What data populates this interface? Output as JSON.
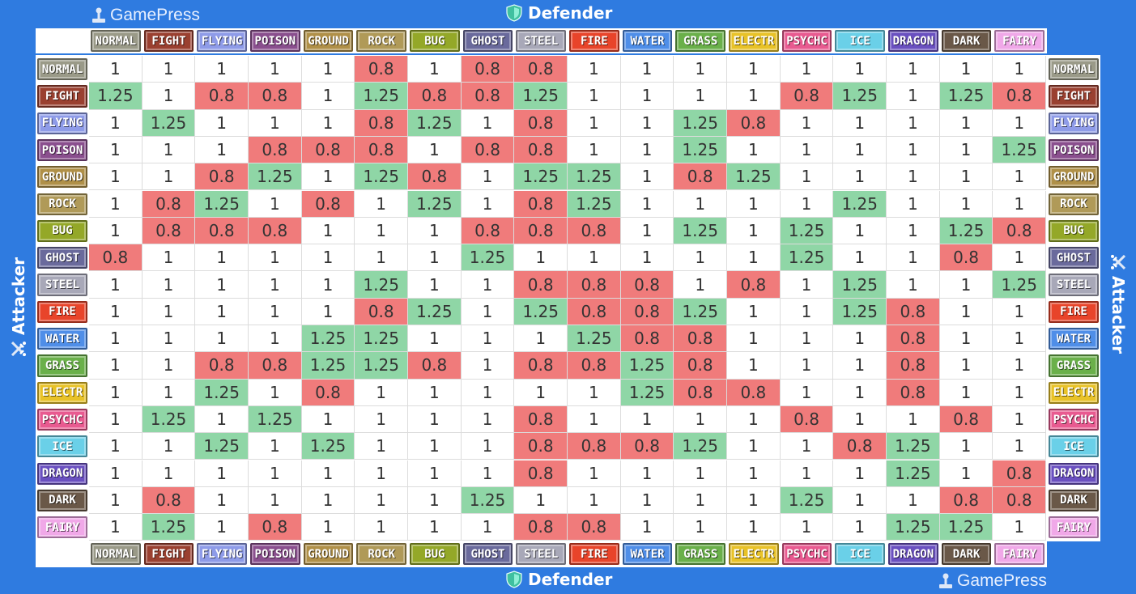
{
  "branding": {
    "name": "GamePress"
  },
  "axes": {
    "defender": "Defender",
    "attacker": "Attacker"
  },
  "types": [
    {
      "label": "NORMAL",
      "color": "#9a9a88"
    },
    {
      "label": "FIGHT",
      "color": "#9a4030"
    },
    {
      "label": "FLYING",
      "color": "#8e9be8"
    },
    {
      "label": "POISON",
      "color": "#8a4f8e"
    },
    {
      "label": "GROUND",
      "color": "#b09048"
    },
    {
      "label": "ROCK",
      "color": "#b09a58"
    },
    {
      "label": "BUG",
      "color": "#94a828"
    },
    {
      "label": "GHOST",
      "color": "#6a6a9c"
    },
    {
      "label": "STEEL",
      "color": "#a8a8b8"
    },
    {
      "label": "FIRE",
      "color": "#e8442a"
    },
    {
      "label": "WATER",
      "color": "#4f8ee8"
    },
    {
      "label": "GRASS",
      "color": "#6ab04a"
    },
    {
      "label": "ELECTR",
      "color": "#e8c228"
    },
    {
      "label": "PSYCHC",
      "color": "#e85a90"
    },
    {
      "label": "ICE",
      "color": "#6ad0e8"
    },
    {
      "label": "DRAGON",
      "color": "#6a50c0"
    },
    {
      "label": "DARK",
      "color": "#6a5848"
    },
    {
      "label": "FAIRY",
      "color": "#f0a8e8"
    }
  ],
  "colors": {
    "strong": "#8fd6a6",
    "weak": "#f07b7b",
    "neutral": "#ffffff",
    "background": "#2f7be0"
  },
  "chart_data": {
    "type": "heatmap",
    "row_axis": "Attacker",
    "column_axis": "Defender",
    "rows": [
      "NORMAL",
      "FIGHT",
      "FLYING",
      "POISON",
      "GROUND",
      "ROCK",
      "BUG",
      "GHOST",
      "STEEL",
      "FIRE",
      "WATER",
      "GRASS",
      "ELECTR",
      "PSYCHC",
      "ICE",
      "DRAGON",
      "DARK",
      "FAIRY"
    ],
    "columns": [
      "NORMAL",
      "FIGHT",
      "FLYING",
      "POISON",
      "GROUND",
      "ROCK",
      "BUG",
      "GHOST",
      "STEEL",
      "FIRE",
      "WATER",
      "GRASS",
      "ELECTR",
      "PSYCHC",
      "ICE",
      "DRAGON",
      "DARK",
      "FAIRY"
    ],
    "values": [
      [
        "1",
        "1",
        "1",
        "1",
        "1",
        "0.8",
        "1",
        "0.8",
        "0.8",
        "1",
        "1",
        "1",
        "1",
        "1",
        "1",
        "1",
        "1",
        "1"
      ],
      [
        "1.25",
        "1",
        "0.8",
        "0.8",
        "1",
        "1.25",
        "0.8",
        "0.8",
        "1.25",
        "1",
        "1",
        "1",
        "1",
        "0.8",
        "1.25",
        "1",
        "1.25",
        "0.8"
      ],
      [
        "1",
        "1.25",
        "1",
        "1",
        "1",
        "0.8",
        "1.25",
        "1",
        "0.8",
        "1",
        "1",
        "1.25",
        "0.8",
        "1",
        "1",
        "1",
        "1",
        "1"
      ],
      [
        "1",
        "1",
        "1",
        "0.8",
        "0.8",
        "0.8",
        "1",
        "0.8",
        "0.8",
        "1",
        "1",
        "1.25",
        "1",
        "1",
        "1",
        "1",
        "1",
        "1.25"
      ],
      [
        "1",
        "1",
        "0.8",
        "1.25",
        "1",
        "1.25",
        "0.8",
        "1",
        "1.25",
        "1.25",
        "1",
        "0.8",
        "1.25",
        "1",
        "1",
        "1",
        "1",
        "1"
      ],
      [
        "1",
        "0.8",
        "1.25",
        "1",
        "0.8",
        "1",
        "1.25",
        "1",
        "0.8",
        "1.25",
        "1",
        "1",
        "1",
        "1",
        "1.25",
        "1",
        "1",
        "1"
      ],
      [
        "1",
        "0.8",
        "0.8",
        "0.8",
        "1",
        "1",
        "1",
        "0.8",
        "0.8",
        "0.8",
        "1",
        "1.25",
        "1",
        "1.25",
        "1",
        "1",
        "1.25",
        "0.8"
      ],
      [
        "0.8",
        "1",
        "1",
        "1",
        "1",
        "1",
        "1",
        "1.25",
        "1",
        "1",
        "1",
        "1",
        "1",
        "1.25",
        "1",
        "1",
        "0.8",
        "1"
      ],
      [
        "1",
        "1",
        "1",
        "1",
        "1",
        "1.25",
        "1",
        "1",
        "0.8",
        "0.8",
        "0.8",
        "1",
        "0.8",
        "1",
        "1.25",
        "1",
        "1",
        "1.25"
      ],
      [
        "1",
        "1",
        "1",
        "1",
        "1",
        "0.8",
        "1.25",
        "1",
        "1.25",
        "0.8",
        "0.8",
        "1.25",
        "1",
        "1",
        "1.25",
        "0.8",
        "1",
        "1"
      ],
      [
        "1",
        "1",
        "1",
        "1",
        "1.25",
        "1.25",
        "1",
        "1",
        "1",
        "1.25",
        "0.8",
        "0.8",
        "1",
        "1",
        "1",
        "0.8",
        "1",
        "1"
      ],
      [
        "1",
        "1",
        "0.8",
        "0.8",
        "1.25",
        "1.25",
        "0.8",
        "1",
        "0.8",
        "0.8",
        "1.25",
        "0.8",
        "1",
        "1",
        "1",
        "0.8",
        "1",
        "1"
      ],
      [
        "1",
        "1",
        "1.25",
        "1",
        "0.8",
        "1",
        "1",
        "1",
        "1",
        "1",
        "1.25",
        "0.8",
        "0.8",
        "1",
        "1",
        "0.8",
        "1",
        "1"
      ],
      [
        "1",
        "1.25",
        "1",
        "1.25",
        "1",
        "1",
        "1",
        "1",
        "0.8",
        "1",
        "1",
        "1",
        "1",
        "0.8",
        "1",
        "1",
        "0.8",
        "1"
      ],
      [
        "1",
        "1",
        "1.25",
        "1",
        "1.25",
        "1",
        "1",
        "1",
        "0.8",
        "0.8",
        "0.8",
        "1.25",
        "1",
        "1",
        "0.8",
        "1.25",
        "1",
        "1"
      ],
      [
        "1",
        "1",
        "1",
        "1",
        "1",
        "1",
        "1",
        "1",
        "0.8",
        "1",
        "1",
        "1",
        "1",
        "1",
        "1",
        "1.25",
        "1",
        "0.8"
      ],
      [
        "1",
        "0.8",
        "1",
        "1",
        "1",
        "1",
        "1",
        "1.25",
        "1",
        "1",
        "1",
        "1",
        "1",
        "1.25",
        "1",
        "1",
        "0.8",
        "0.8"
      ],
      [
        "1",
        "1.25",
        "1",
        "0.8",
        "1",
        "1",
        "1",
        "1",
        "0.8",
        "0.8",
        "1",
        "1",
        "1",
        "1",
        "1",
        "1.25",
        "1.25",
        "1"
      ]
    ]
  }
}
